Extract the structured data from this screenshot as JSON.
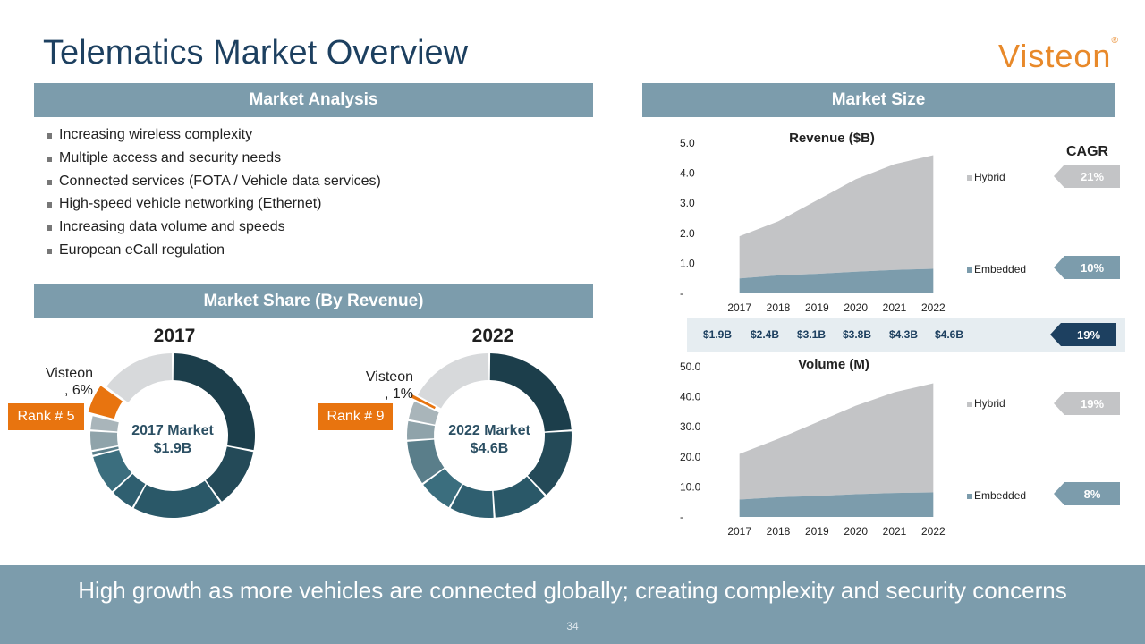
{
  "title": "Telematics Market Overview",
  "logo": {
    "text": "Visteon",
    "mark": "®"
  },
  "market_analysis": {
    "header": "Market Analysis",
    "bullets": [
      "Increasing wireless complexity",
      "Multiple access and security needs",
      "Connected services (FOTA / Vehicle data services)",
      "High-speed vehicle networking (Ethernet)",
      "Increasing data volume and speeds",
      "European eCall regulation"
    ]
  },
  "market_share": {
    "header": "Market Share (By Revenue)",
    "donuts": [
      {
        "year": "2017",
        "center_line1": "2017 Market",
        "center_line2": "$1.9B",
        "visteon_label_line1": "Visteon",
        "visteon_label_line2": ", 6%",
        "rank": "Rank # 5"
      },
      {
        "year": "2022",
        "center_line1": "2022 Market",
        "center_line2": "$4.6B",
        "visteon_label_line1": "Visteon",
        "visteon_label_line2": ", 1%",
        "rank": "Rank # 9"
      }
    ]
  },
  "market_size": {
    "header": "Market Size",
    "cagr_header": "CAGR",
    "revenue_totals": [
      "$1.9B",
      "$2.4B",
      "$3.1B",
      "$3.8B",
      "$4.3B",
      "$4.6B"
    ],
    "revenue_cagr": {
      "hybrid": "21%",
      "embedded": "10%",
      "total": "19%"
    },
    "volume_cagr": {
      "hybrid": "19%",
      "embedded": "8%"
    }
  },
  "chart_data": [
    {
      "type": "area",
      "title": "Revenue ($B)",
      "categories": [
        "2017",
        "2018",
        "2019",
        "2020",
        "2021",
        "2022"
      ],
      "series": [
        {
          "name": "Embedded",
          "values": [
            0.5,
            0.6,
            0.65,
            0.72,
            0.78,
            0.82
          ]
        },
        {
          "name": "Hybrid",
          "values": [
            1.4,
            1.8,
            2.45,
            3.08,
            3.52,
            3.78
          ]
        }
      ],
      "stacked": true,
      "ylim": [
        0,
        5
      ],
      "yticks": [
        "-",
        "1.0",
        "2.0",
        "3.0",
        "4.0",
        "5.0"
      ],
      "legend": "right",
      "colors": {
        "Embedded": "#7c9cac",
        "Hybrid": "#c3c4c6"
      }
    },
    {
      "type": "area",
      "title": "Volume (M)",
      "categories": [
        "2017",
        "2018",
        "2019",
        "2020",
        "2021",
        "2022"
      ],
      "series": [
        {
          "name": "Embedded",
          "values": [
            5.8,
            6.6,
            7.0,
            7.6,
            8.0,
            8.2
          ]
        },
        {
          "name": "Hybrid",
          "values": [
            15.2,
            19.4,
            24.5,
            29.4,
            33.5,
            36.3
          ]
        }
      ],
      "stacked": true,
      "ylim": [
        0,
        50
      ],
      "yticks": [
        "-",
        "10.0",
        "20.0",
        "30.0",
        "40.0",
        "50.0"
      ],
      "legend": "right",
      "colors": {
        "Embedded": "#7c9cac",
        "Hybrid": "#c3c4c6"
      }
    },
    {
      "type": "pie",
      "title": "2017",
      "segments": [
        {
          "color": "#1c3e4b",
          "value": 28
        },
        {
          "color": "#244a58",
          "value": 12
        },
        {
          "color": "#2a5868",
          "value": 18
        },
        {
          "color": "#2f5f70",
          "value": 5
        },
        {
          "color": "#3b6e7e",
          "value": 8
        },
        {
          "color": "#5a7e8a",
          "value": 1
        },
        {
          "color": "#8fa3aa",
          "value": 4
        },
        {
          "color": "#a9b5ba",
          "value": 3
        },
        {
          "color": "#e8740f",
          "value": 6
        },
        {
          "color": "#d7d9db",
          "value": 15
        }
      ]
    },
    {
      "type": "pie",
      "title": "2022",
      "segments": [
        {
          "color": "#1c3e4b",
          "value": 24
        },
        {
          "color": "#244a58",
          "value": 14
        },
        {
          "color": "#2a5868",
          "value": 11
        },
        {
          "color": "#2f5f70",
          "value": 9
        },
        {
          "color": "#3b6e7e",
          "value": 7
        },
        {
          "color": "#5a7e8a",
          "value": 9
        },
        {
          "color": "#8fa3aa",
          "value": 4
        },
        {
          "color": "#a9b5ba",
          "value": 4
        },
        {
          "color": "#e8740f",
          "value": 1
        },
        {
          "color": "#d7d9db",
          "value": 17
        }
      ]
    }
  ],
  "colors": {
    "accent": "#7c9cac",
    "title": "#1d4060",
    "orange": "#e8740f",
    "cagr_light": "#b0b4b8",
    "cagr_dark": "#1d4060"
  },
  "footer": {
    "tagline": "High growth as more vehicles are connected globally; creating complexity and security concerns",
    "page": "34"
  }
}
